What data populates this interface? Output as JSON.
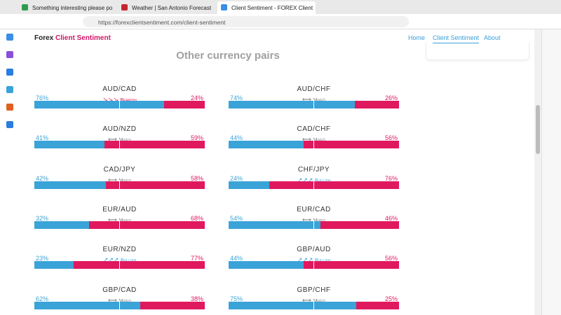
{
  "browser": {
    "tabs": [
      "Something interesting please po",
      "Weather | San Antonio Forecast",
      "Client Sentiment - FOREX Client"
    ],
    "url": "https://forexclientsentiment.com/client-sentiment"
  },
  "site": {
    "brand": [
      "Forex",
      "Client Sentiment"
    ],
    "nav": [
      "Home",
      "Client Sentiment",
      "About"
    ]
  },
  "section": {
    "title": "Other currency pairs",
    "pairs": [
      {
        "name": "AUD/CAD",
        "long": 76,
        "short": 24,
        "long_label": "76%",
        "short_label": "24%",
        "sentiment": "Bearish"
      },
      {
        "name": "AUD/CHF",
        "long": 74,
        "short": 26,
        "long_label": "74%",
        "short_label": "26%",
        "sentiment": "Mixed"
      },
      {
        "name": "AUD/NZD",
        "long": 41,
        "short": 59,
        "long_label": "41%",
        "short_label": "59%",
        "sentiment": "Mixed"
      },
      {
        "name": "CAD/CHF",
        "long": 44,
        "short": 56,
        "long_label": "44%",
        "short_label": "56%",
        "sentiment": "Mixed"
      },
      {
        "name": "CAD/JPY",
        "long": 42,
        "short": 58,
        "long_label": "42%",
        "short_label": "58%",
        "sentiment": "Mixed"
      },
      {
        "name": "CHF/JPY",
        "long": 24,
        "short": 76,
        "long_label": "24%",
        "short_label": "76%",
        "sentiment": "Bullish"
      },
      {
        "name": "EUR/AUD",
        "long": 32,
        "short": 68,
        "long_label": "32%",
        "short_label": "68%",
        "sentiment": "Mixed"
      },
      {
        "name": "EUR/CAD",
        "long": 54,
        "short": 46,
        "long_label": "54%",
        "short_label": "46%",
        "sentiment": "Mixed"
      },
      {
        "name": "EUR/NZD",
        "long": 23,
        "short": 77,
        "long_label": "23%",
        "short_label": "77%",
        "sentiment": "Bullish"
      },
      {
        "name": "GBP/AUD",
        "long": 44,
        "short": 56,
        "long_label": "44%",
        "short_label": "56%",
        "sentiment": "Bullish"
      },
      {
        "name": "GBP/CAD",
        "long": 62,
        "short": 38,
        "long_label": "62%",
        "short_label": "38%",
        "sentiment": "Mixed"
      },
      {
        "name": "GBP/CHF",
        "long": 75,
        "short": 25,
        "long_label": "75%",
        "short_label": "25%",
        "sentiment": "Mixed"
      }
    ]
  }
}
